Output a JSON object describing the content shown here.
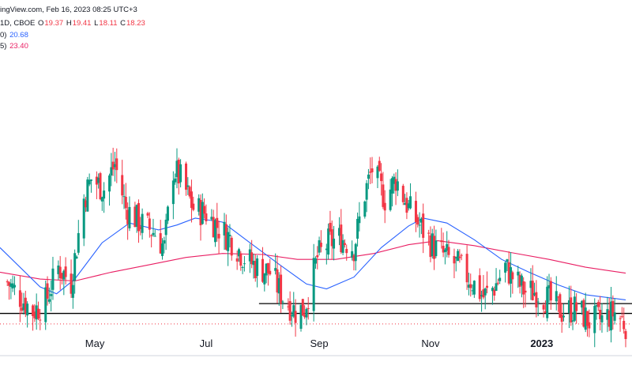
{
  "header": {
    "line1_prefix": "ingView.com, Feb 16, 2023 08:25 UTC+3",
    "line2": {
      "label": "1D, CBOE",
      "o_key": "O",
      "o_val": "19.37",
      "h_key": "H",
      "h_val": "19.41",
      "l_key": "L",
      "l_val": "18.11",
      "c_key": "C",
      "c_val": "18.23"
    },
    "line3": {
      "label": "0)",
      "value": "20.68"
    },
    "line4": {
      "label": "5)",
      "value": "23.40"
    }
  },
  "colors": {
    "up": "#089981",
    "down": "#f23645",
    "ma_fast": "#2962ff",
    "ma_slow": "#e91e63",
    "support": "#000000",
    "axis_line": "#d1d4dc"
  },
  "chart_data": {
    "type": "candlestick",
    "y_range": [
      15,
      50
    ],
    "x_axis_labels": [
      {
        "label": "May",
        "date": "2022-05-01",
        "bold": false
      },
      {
        "label": "Jul",
        "date": "2022-07-01",
        "bold": false
      },
      {
        "label": "Sep",
        "date": "2022-09-01",
        "bold": false
      },
      {
        "label": "Nov",
        "date": "2022-11-01",
        "bold": false
      },
      {
        "label": "2023",
        "date": "2023-01-01",
        "bold": true
      }
    ],
    "x_range": [
      "2022-03-10",
      "2023-02-16"
    ],
    "anchors": [
      [
        "2022-03-14",
        22.5
      ],
      [
        "2022-03-21",
        21.0
      ],
      [
        "2022-03-28",
        19.5
      ],
      [
        "2022-04-04",
        20.5
      ],
      [
        "2022-04-11",
        24.0
      ],
      [
        "2022-04-18",
        22.5
      ],
      [
        "2022-04-25",
        31.0
      ],
      [
        "2022-04-29",
        33.0
      ],
      [
        "2022-05-06",
        32.0
      ],
      [
        "2022-05-12",
        34.5
      ],
      [
        "2022-05-18",
        30.0
      ],
      [
        "2022-05-26",
        28.5
      ],
      [
        "2022-06-03",
        27.5
      ],
      [
        "2022-06-08",
        26.0
      ],
      [
        "2022-06-13",
        34.0
      ],
      [
        "2022-06-17",
        33.0
      ],
      [
        "2022-06-24",
        30.0
      ],
      [
        "2022-07-01",
        29.5
      ],
      [
        "2022-07-08",
        28.0
      ],
      [
        "2022-07-14",
        27.0
      ],
      [
        "2022-07-22",
        25.0
      ],
      [
        "2022-07-29",
        24.0
      ],
      [
        "2022-08-05",
        23.5
      ],
      [
        "2022-08-12",
        21.0
      ],
      [
        "2022-08-19",
        19.5
      ],
      [
        "2022-08-24",
        19.8
      ],
      [
        "2022-08-31",
        25.0
      ],
      [
        "2022-09-06",
        26.5
      ],
      [
        "2022-09-13",
        27.0
      ],
      [
        "2022-09-20",
        26.0
      ],
      [
        "2022-09-26",
        31.5
      ],
      [
        "2022-09-30",
        34.0
      ],
      [
        "2022-10-07",
        31.0
      ],
      [
        "2022-10-13",
        33.0
      ],
      [
        "2022-10-20",
        30.0
      ],
      [
        "2022-10-27",
        28.0
      ],
      [
        "2022-11-03",
        26.0
      ],
      [
        "2022-11-10",
        25.0
      ],
      [
        "2022-11-17",
        24.0
      ],
      [
        "2022-11-24",
        22.5
      ],
      [
        "2022-11-30",
        21.0
      ],
      [
        "2022-12-06",
        22.0
      ],
      [
        "2022-12-12",
        24.0
      ],
      [
        "2022-12-16",
        23.0
      ],
      [
        "2022-12-23",
        21.5
      ],
      [
        "2022-12-30",
        21.5
      ],
      [
        "2023-01-06",
        20.5
      ],
      [
        "2023-01-12",
        19.5
      ],
      [
        "2023-01-20",
        19.8
      ],
      [
        "2023-01-27",
        18.5
      ],
      [
        "2023-02-03",
        18.7
      ],
      [
        "2023-02-10",
        19.4
      ],
      [
        "2023-02-16",
        18.23
      ]
    ],
    "ma_fast": [
      [
        "2022-03-10",
        26.0
      ],
      [
        "2022-04-01",
        22.0
      ],
      [
        "2022-04-10",
        21.3
      ],
      [
        "2022-04-20",
        22.8
      ],
      [
        "2022-05-05",
        26.5
      ],
      [
        "2022-05-20",
        28.5
      ],
      [
        "2022-06-05",
        27.8
      ],
      [
        "2022-06-15",
        28.3
      ],
      [
        "2022-06-25",
        29.0
      ],
      [
        "2022-07-10",
        28.6
      ],
      [
        "2022-07-25",
        26.5
      ],
      [
        "2022-08-10",
        24.3
      ],
      [
        "2022-08-25",
        22.3
      ],
      [
        "2022-09-05",
        21.8
      ],
      [
        "2022-09-20",
        23.0
      ],
      [
        "2022-10-05",
        26.0
      ],
      [
        "2022-10-20",
        28.2
      ],
      [
        "2022-10-28",
        29.0
      ],
      [
        "2022-11-10",
        28.5
      ],
      [
        "2022-11-25",
        26.8
      ],
      [
        "2022-12-10",
        24.8
      ],
      [
        "2022-12-25",
        23.5
      ],
      [
        "2023-01-10",
        22.2
      ],
      [
        "2023-01-25",
        21.2
      ],
      [
        "2023-02-16",
        20.68
      ]
    ],
    "ma_slow": [
      [
        "2022-03-10",
        23.5
      ],
      [
        "2022-04-01",
        22.8
      ],
      [
        "2022-04-20",
        22.6
      ],
      [
        "2022-05-10",
        23.5
      ],
      [
        "2022-06-01",
        24.3
      ],
      [
        "2022-06-20",
        25.0
      ],
      [
        "2022-07-10",
        25.4
      ],
      [
        "2022-08-01",
        25.3
      ],
      [
        "2022-08-20",
        24.8
      ],
      [
        "2022-09-10",
        24.8
      ],
      [
        "2022-10-01",
        25.4
      ],
      [
        "2022-10-20",
        26.3
      ],
      [
        "2022-11-05",
        26.7
      ],
      [
        "2022-11-25",
        26.2
      ],
      [
        "2022-12-15",
        25.5
      ],
      [
        "2023-01-05",
        24.8
      ],
      [
        "2023-01-25",
        24.0
      ],
      [
        "2023-02-16",
        23.4
      ]
    ],
    "support_lines": [
      {
        "value": 20.3,
        "from": "2022-07-30",
        "to": "2023-02-16"
      },
      {
        "value": 19.3,
        "from": "2022-03-10",
        "to": "2023-02-16"
      }
    ],
    "last_close": 18.23,
    "grid": false,
    "legend": "top-left"
  }
}
